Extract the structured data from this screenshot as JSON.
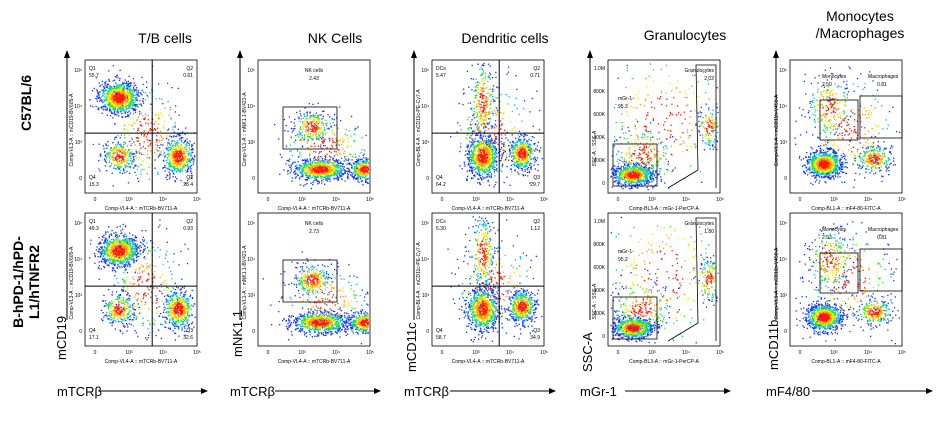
{
  "titles": [
    "T/B cells",
    "NK Cells",
    "Dendritic cells",
    "Granulocytes",
    "Monocytes\n/Macrophages"
  ],
  "row_labels": [
    "C57BL/6",
    "B-hPD-1/hPD-L1/hTNFR2"
  ],
  "x_markers": [
    "mTCRβ",
    "mTCRβ",
    "mTCRβ",
    "mGr-1",
    "mF4/80"
  ],
  "y_markers": [
    "mCD19",
    "mNK1.1",
    "mCD11c",
    "SSC-A",
    "mCD11b"
  ],
  "panels": [
    {
      "xaxis": "Comp-VL4-A :: mTCRb-BV711-A",
      "yaxis": "Comp-VL3-A :: mCD19-BV605-A",
      "top": {
        "q1": "Q1",
        "q1v": "55.7",
        "q2": "Q2",
        "q2v": "0.61",
        "q3": "Q3",
        "q3v": "28.4",
        "q4": "Q4",
        "q4v": "15.3"
      },
      "bottom": {
        "q1": "Q1",
        "q1v": "49.3",
        "q2": "Q2",
        "q2v": "0.93",
        "q3": "Q3",
        "q3v": "32.6",
        "q4": "Q4",
        "q4v": "17.1"
      }
    },
    {
      "xaxis": "Comp-VL4-A :: mTCRb-BV711-A",
      "yaxis": "Comp-VL1-A :: mNK1.1-BV421-A",
      "top": {
        "gate": "NK cells",
        "value": "2.43"
      },
      "bottom": {
        "gate": "NK cells",
        "value": "2.73"
      }
    },
    {
      "xaxis": "Comp-VL4-A :: mTCRb-BV711-A",
      "yaxis": "Comp-BL4-A :: mCD11c-PE-Cy7-A",
      "top": {
        "q1": "DCs",
        "q1v": "5.47",
        "q2": "Q2",
        "q2v": "0.71",
        "q3": "Q3",
        "q3v": "29.7",
        "q4": "Q4",
        "q4v": "64.2"
      },
      "bottom": {
        "q1": "DCs",
        "q1v": "5.30",
        "q2": "Q2",
        "q2v": "1.12",
        "q3": "Q3",
        "q3v": "34.9",
        "q4": "Q4",
        "q4v": "58.7"
      }
    },
    {
      "xaxis": "Comp-BL3-A :: mGr-1-PerCP-A",
      "yaxis": "SSC-A :: SSC-A",
      "top": {
        "gate1": "mGr-1-",
        "value1": "95.3",
        "gate2": "Granulocytes",
        "value2": "2.02"
      },
      "bottom": {
        "gate1": "mGr-1-",
        "value1": "95.2",
        "gate2": "Granulocytes",
        "value2": "1.80"
      }
    },
    {
      "xaxis": "Comp-BL1-A :: mF4-80-FITC-A",
      "yaxis": "Comp-VL1-A :: mCD11b-V450-A",
      "top": {
        "gate1": "Monocytes",
        "value1": "2.50",
        "gate2": "Macrophages",
        "value2": "0.81"
      },
      "bottom": {
        "gate1": "Monocytes",
        "value1": "2.33",
        "gate2": "Macrophages",
        "value2": "0.81"
      }
    }
  ],
  "tick_labels": {
    "log": [
      "0",
      "10³",
      "10⁴",
      "10⁵"
    ],
    "log_y": [
      "10⁵",
      "10⁴",
      "10³",
      "0"
    ],
    "ssc": [
      "1.0M",
      "800K",
      "600K",
      "400K",
      "200K",
      "0"
    ]
  }
}
